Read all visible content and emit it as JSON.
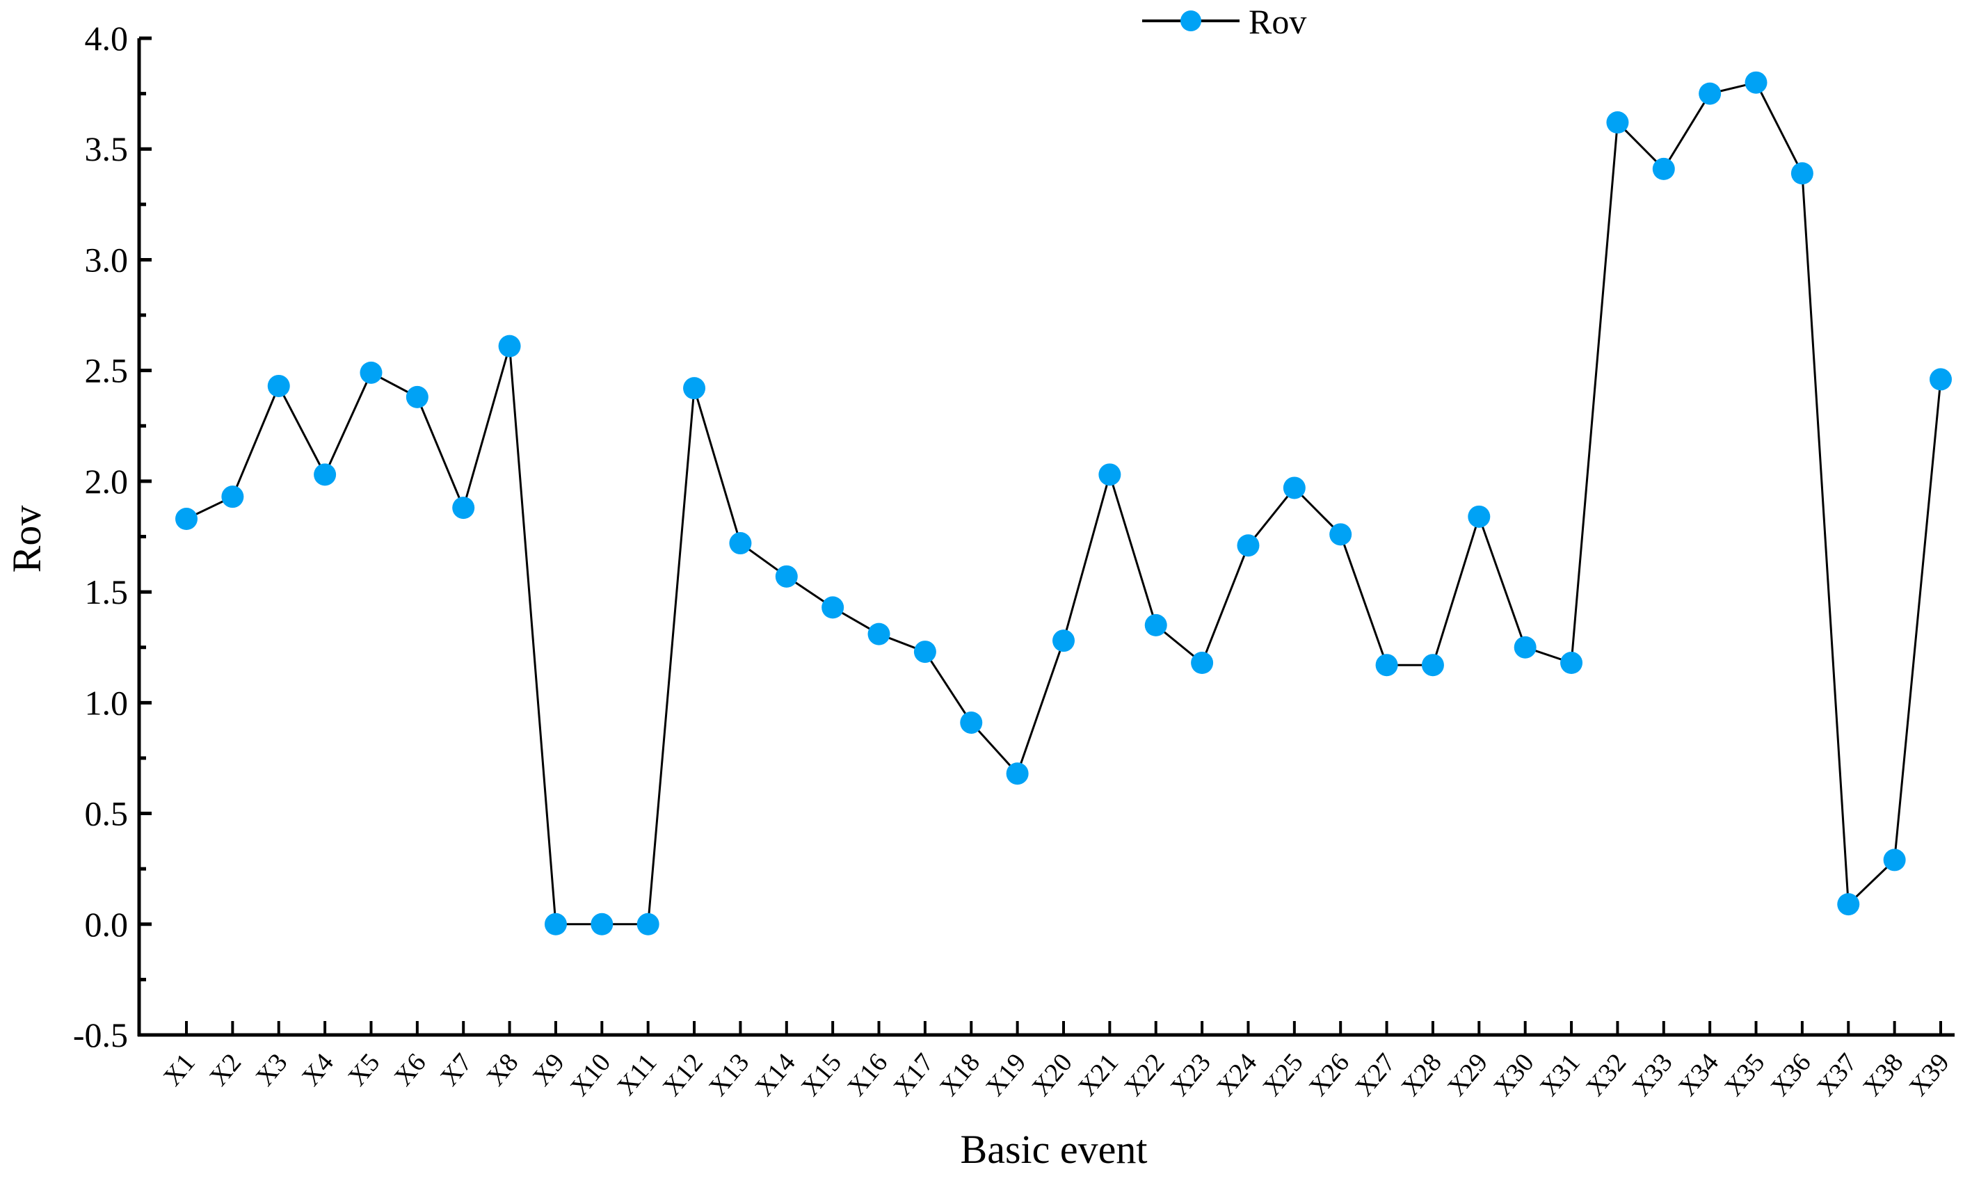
{
  "chart_data": {
    "type": "line",
    "title": "",
    "xlabel": "Basic event",
    "ylabel": "Rov",
    "ylim": [
      -0.5,
      4.0
    ],
    "yticks": [
      "-0.5",
      "0.0",
      "0.5",
      "1.0",
      "1.5",
      "2.0",
      "2.5",
      "3.0",
      "3.5",
      "4.0"
    ],
    "grid": false,
    "legend_position": "top-center",
    "categories": [
      "X1",
      "X2",
      "X3",
      "X4",
      "X5",
      "X6",
      "X7",
      "X8",
      "X9",
      "X10",
      "X11",
      "X12",
      "X13",
      "X14",
      "X15",
      "X16",
      "X17",
      "X18",
      "X19",
      "X20",
      "X21",
      "X22",
      "X23",
      "X24",
      "X25",
      "X26",
      "X27",
      "X28",
      "X29",
      "X30",
      "X31",
      "X32",
      "X33",
      "X34",
      "X35",
      "X36",
      "X37",
      "X38",
      "X39"
    ],
    "series": [
      {
        "name": "Rov",
        "color": "#00a2f5",
        "line_color": "#000000",
        "values": [
          1.83,
          1.93,
          2.43,
          2.03,
          2.49,
          2.38,
          1.88,
          2.61,
          0.0,
          0.0,
          0.0,
          2.42,
          1.72,
          1.57,
          1.43,
          1.31,
          1.23,
          0.91,
          0.68,
          1.28,
          2.03,
          1.35,
          1.18,
          1.71,
          1.97,
          1.76,
          1.17,
          1.17,
          1.84,
          1.25,
          1.18,
          3.62,
          3.41,
          3.75,
          3.8,
          3.39,
          0.09,
          0.29,
          2.46
        ]
      }
    ]
  },
  "legend": {
    "label": "Rov"
  }
}
